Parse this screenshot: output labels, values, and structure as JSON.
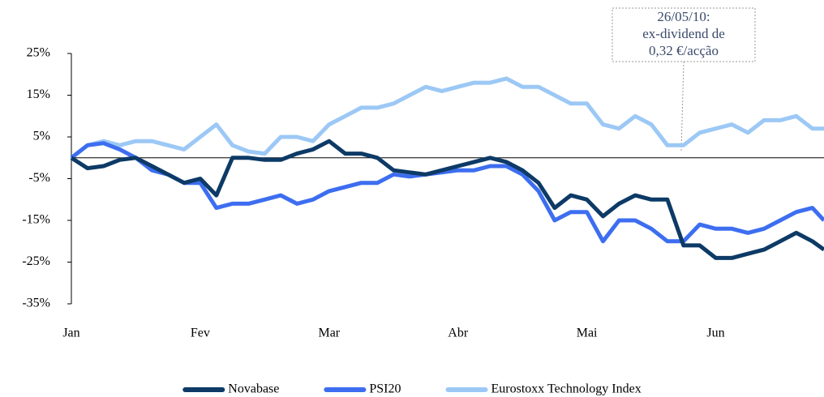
{
  "chart_data": {
    "type": "line",
    "annotation": [
      "26/05/10:",
      "ex-dividend de",
      "0,32 €/acção"
    ],
    "x": [
      0,
      0.125,
      0.25,
      0.375,
      0.5,
      0.625,
      0.75,
      0.875,
      1.0,
      1.125,
      1.25,
      1.375,
      1.5,
      1.625,
      1.75,
      1.875,
      2.0,
      2.125,
      2.25,
      2.375,
      2.5,
      2.625,
      2.75,
      2.875,
      3.0,
      3.125,
      3.25,
      3.375,
      3.5,
      3.625,
      3.75,
      3.875,
      4.0,
      4.125,
      4.25,
      4.375,
      4.5,
      4.625,
      4.75,
      4.875,
      5.0,
      5.125,
      5.25,
      5.375,
      5.5,
      5.625,
      5.75,
      5.84
    ],
    "xlim": [
      0,
      5.84
    ],
    "xticks": [
      {
        "value": 0,
        "label": "Jan"
      },
      {
        "value": 1,
        "label": "Fev"
      },
      {
        "value": 2,
        "label": "Mar"
      },
      {
        "value": 3,
        "label": "Abr"
      },
      {
        "value": 4,
        "label": "Mai"
      },
      {
        "value": 5,
        "label": "Jun"
      }
    ],
    "ylim": [
      -35,
      25
    ],
    "yticks": [
      {
        "value": -35,
        "label": "-35%"
      },
      {
        "value": -25,
        "label": "-25%"
      },
      {
        "value": -15,
        "label": "-15%"
      },
      {
        "value": -5,
        "label": "-5%"
      },
      {
        "value": 5,
        "label": "5%"
      },
      {
        "value": 15,
        "label": "15%"
      },
      {
        "value": 25,
        "label": "25%"
      }
    ],
    "series": [
      {
        "name": "Novabase",
        "color": "#0d3a66",
        "values": [
          0,
          -2.5,
          -2,
          -0.5,
          0,
          -2,
          -4,
          -6,
          -5,
          -9,
          0,
          0,
          -0.5,
          -0.5,
          1,
          2,
          4,
          1,
          1,
          0,
          -3,
          -3.5,
          -4,
          -3,
          -2,
          -1,
          0,
          -1,
          -3,
          -6,
          -12,
          -9,
          -10,
          -14,
          -11,
          -9,
          -10,
          -10,
          -21,
          -21,
          -24,
          -24,
          -23,
          -22,
          -20,
          -18,
          -20,
          -22
        ]
      },
      {
        "name": "PSI20",
        "color": "#3d6ef0",
        "values": [
          0,
          3,
          3.5,
          2,
          0,
          -3,
          -4,
          -6,
          -6,
          -12,
          -11,
          -11,
          -10,
          -9,
          -11,
          -10,
          -8,
          -7,
          -6,
          -6,
          -4,
          -4.5,
          -4,
          -3.5,
          -3,
          -3,
          -2,
          -2,
          -4,
          -8,
          -15,
          -13,
          -13,
          -20,
          -15,
          -15,
          -17,
          -20,
          -20,
          -16,
          -17,
          -17,
          -18,
          -17,
          -15,
          -13,
          -12,
          -15
        ]
      },
      {
        "name": "Eurostoxx Technology Index",
        "color": "#9cc8f5",
        "values": [
          0,
          3,
          4,
          3,
          4,
          4,
          3,
          2,
          5,
          8,
          3,
          1.5,
          1,
          5,
          5,
          4,
          8,
          10,
          12,
          12,
          13,
          15,
          17,
          16,
          17,
          18,
          18,
          19,
          17,
          17,
          15,
          13,
          13,
          8,
          7,
          10,
          8,
          3,
          3,
          6,
          7,
          8,
          6,
          9,
          9,
          10,
          7,
          7
        ]
      }
    ]
  }
}
